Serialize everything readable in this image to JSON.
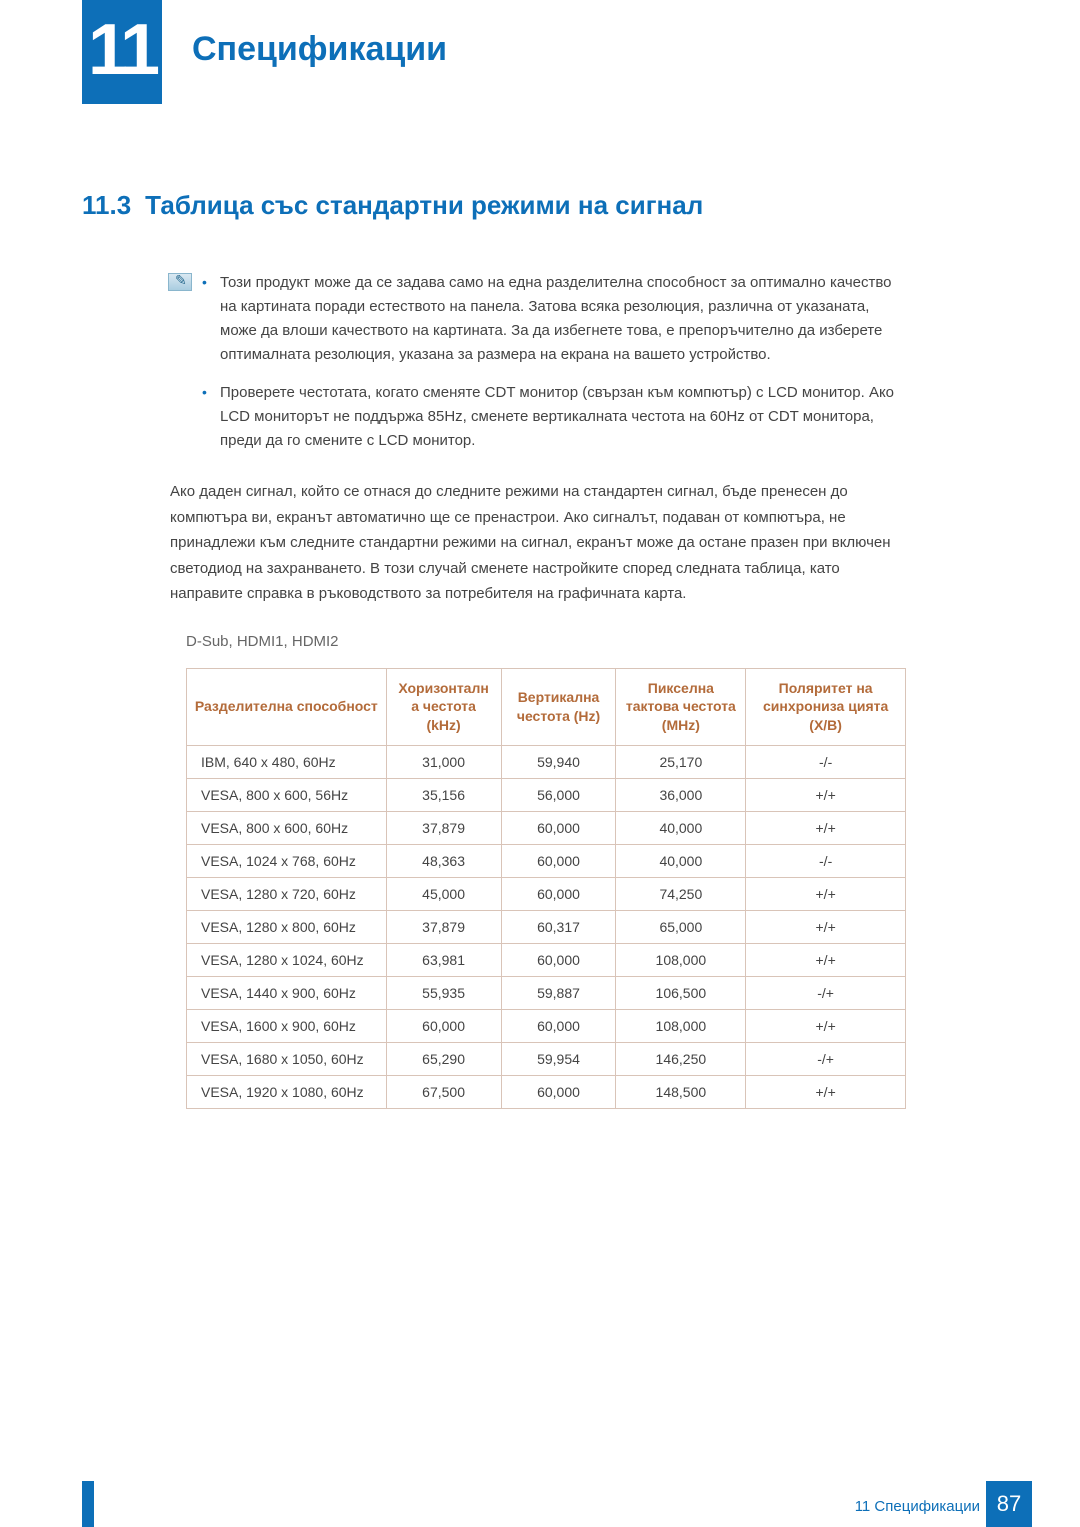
{
  "header": {
    "chapter_number": "11",
    "chapter_title": "Спецификации"
  },
  "section": {
    "number": "11.3",
    "title": "Таблица със стандартни режими на сигнал"
  },
  "notes": {
    "items": [
      "Този продукт може да се задава само на една разделителна способност за оптимално качество на картината поради естеството на панела. Затова всяка резолюция, различна от указаната, може да влоши качеството на картината. За да избегнете това, е препоръчително да изберете оптималната резолюция, указана за размера на екрана на вашето устройство.",
      "Проверете честотата, когато сменяте CDT монитор (свързан към компютър) с LCD монитор. Ако LCD мониторът не поддържа 85Hz, сменете вертикалната честота на 60Hz от CDT монитора, преди да го смените с LCD монитор."
    ]
  },
  "paragraph": "Ако даден сигнал, който се отнася до следните режими на стандартен сигнал, бъде пренесен до компютъра ви, екранът автоматично ще се пренастрои. Ако сигналът, подаван от компютъра, не принадлежи към следните стандартни режими на сигнал, екранът може да остане празен при включен светодиод на захранването. В този случай сменете настройките според следната таблица, като направите справка в ръководството за потребителя на графичната карта.",
  "subhead": "D-Sub, HDMI1, HDMI2",
  "table": {
    "type": "table",
    "header_color": "#b36b3a",
    "border_color": "#d9c4b8",
    "columns": [
      "Разделителна способност",
      "Хоризонталн а честота (kHz)",
      "Вертикална честота (Hz)",
      "Пикселна тактова честота (MHz)",
      "Поляритет на синхрониза цията (Х/В)"
    ],
    "col_widths": [
      "200px",
      "115px",
      "115px",
      "130px",
      "160px"
    ],
    "rows": [
      [
        "IBM, 640 x 480, 60Hz",
        "31,000",
        "59,940",
        "25,170",
        "-/-"
      ],
      [
        "VESA, 800 x 600, 56Hz",
        "35,156",
        "56,000",
        "36,000",
        "+/+"
      ],
      [
        "VESA, 800 x 600, 60Hz",
        "37,879",
        "60,000",
        "40,000",
        "+/+"
      ],
      [
        "VESA, 1024 x 768, 60Hz",
        "48,363",
        "60,000",
        "40,000",
        "-/-"
      ],
      [
        "VESA, 1280 x 720, 60Hz",
        "45,000",
        "60,000",
        "74,250",
        "+/+"
      ],
      [
        "VESA, 1280 x 800, 60Hz",
        "37,879",
        "60,317",
        "65,000",
        "+/+"
      ],
      [
        "VESA, 1280 x 1024, 60Hz",
        "63,981",
        "60,000",
        "108,000",
        "+/+"
      ],
      [
        "VESA, 1440 x 900, 60Hz",
        "55,935",
        "59,887",
        "106,500",
        "-/+"
      ],
      [
        "VESA, 1600 x 900, 60Hz",
        "60,000",
        "60,000",
        "108,000",
        "+/+"
      ],
      [
        "VESA, 1680 x 1050, 60Hz",
        "65,290",
        "59,954",
        "146,250",
        "-/+"
      ],
      [
        "VESA, 1920 x 1080, 60Hz",
        "67,500",
        "60,000",
        "148,500",
        "+/+"
      ]
    ]
  },
  "footer": {
    "label": "11 Спецификации",
    "page": "87"
  },
  "colors": {
    "brand_blue": "#0d6fb8",
    "table_header_text": "#b36b3a",
    "table_border": "#d9c4b8",
    "body_text": "#444444"
  }
}
